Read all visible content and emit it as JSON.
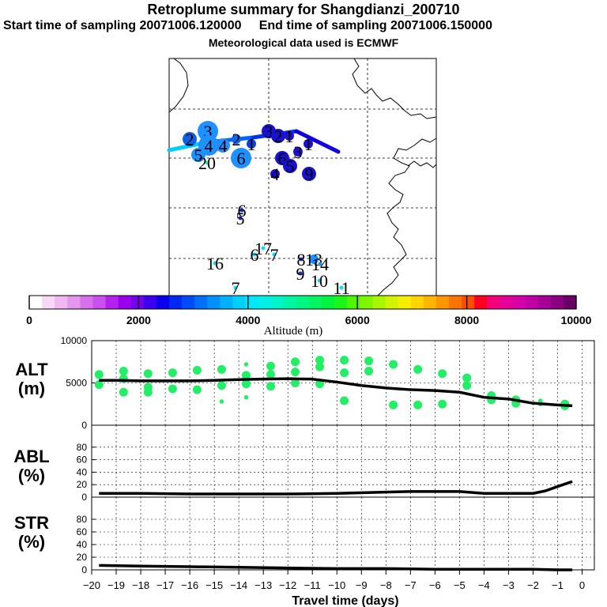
{
  "header": {
    "title": "Retroplume summary for Shangdianzi_200710",
    "subtitle": "Start time of sampling 20071006.120000     End time of sampling 20071006.150000",
    "met_note": "Meteorological data used is ECMWF"
  },
  "colorbar": {
    "label": "Altitude (m)",
    "ticks": [
      "0",
      "2000",
      "4000",
      "6000",
      "8000",
      "10000"
    ],
    "colors": [
      "#ffffff",
      "#f7d9f7",
      "#efb9ef",
      "#e596ee",
      "#d870ee",
      "#c94fee",
      "#b321ee",
      "#9a00ee",
      "#7400ee",
      "#3c00ee",
      "#0b00ee",
      "#0028f5",
      "#004cf8",
      "#0070fb",
      "#0092fc",
      "#00b2fd",
      "#00d0fe",
      "#00e6fa",
      "#00f0e8",
      "#00f3c9",
      "#00f5a6",
      "#00f683",
      "#00f55f",
      "#00f43c",
      "#1df519",
      "#4ef600",
      "#7ef600",
      "#aaf500",
      "#d3f400",
      "#f4ee00",
      "#ffd500",
      "#ffb600",
      "#ff9600",
      "#ff7400",
      "#ff4e00",
      "#ff0022",
      "#f5007a",
      "#e6009a",
      "#d600a8",
      "#c000a6",
      "#a60096",
      "#8a0081",
      "#6a0064"
    ]
  },
  "map": {
    "plume_path_colors": [
      "#00ccff",
      "#0066ff",
      "#0033ee",
      "#1100dd"
    ],
    "markers": [
      {
        "label": "3",
        "color": "#1e90ff",
        "size": "large"
      },
      {
        "label": "2",
        "color": "#0f60e0",
        "size": "medium"
      },
      {
        "label": "4",
        "color": "#1e90ff",
        "size": "large"
      },
      {
        "label": "4",
        "color": "#1e90ff",
        "size": "medium"
      },
      {
        "label": "2",
        "color": "#1166ee",
        "size": "small"
      },
      {
        "label": "1",
        "color": "#0b3fe0",
        "size": "small"
      },
      {
        "label": "5",
        "color": "#1e90ff",
        "size": "medium"
      },
      {
        "label": "20",
        "color": "#00ffcc",
        "size": "tiny"
      },
      {
        "label": "6",
        "color": "#1e90ff",
        "size": "large"
      },
      {
        "label": "3",
        "color": "#1a10d0",
        "size": "medium"
      },
      {
        "label": "2",
        "color": "#1a10d0",
        "size": "medium"
      },
      {
        "label": "1",
        "color": "#2010d0",
        "size": "small"
      },
      {
        "label": "3",
        "color": "#2010d0",
        "size": "small"
      },
      {
        "label": "1",
        "color": "#2010d0",
        "size": "small"
      },
      {
        "label": "6",
        "color": "#1a10d0",
        "size": "medium"
      },
      {
        "label": "5",
        "color": "#1a10d0",
        "size": "medium"
      },
      {
        "label": "9",
        "color": "#1a10d0",
        "size": "medium"
      },
      {
        "label": "4",
        "color": "#2010d0",
        "size": "small"
      },
      {
        "label": "6",
        "color": "#1a30d0",
        "size": "tiny"
      },
      {
        "label": "5",
        "color": "#1a30d0",
        "size": "tiny"
      },
      {
        "label": "17",
        "color": "#00e0ff",
        "size": "tiny"
      },
      {
        "label": "6",
        "color": "#00e0ff",
        "size": "tiny"
      },
      {
        "label": "7",
        "color": "#00e0ff",
        "size": "tiny"
      },
      {
        "label": "16",
        "color": "#00e0ff",
        "size": "tiny"
      },
      {
        "label": "8",
        "color": "#1a30d0",
        "size": "tiny"
      },
      {
        "label": "13",
        "color": "#1e90ff",
        "size": "small"
      },
      {
        "label": "14",
        "color": "#1e90ff",
        "size": "tiny"
      },
      {
        "label": "9",
        "color": "#1a30d0",
        "size": "tiny"
      },
      {
        "label": "10",
        "color": "#00e0ff",
        "size": "tiny"
      },
      {
        "label": "11",
        "color": "#00e0ff",
        "size": "tiny"
      },
      {
        "label": "7",
        "color": "#00e0ff",
        "size": "tiny"
      }
    ]
  },
  "panels": {
    "alt": {
      "label": "ALT\n(m)",
      "label_line1": "ALT",
      "label_line2": "(m)"
    },
    "abl": {
      "label_line1": "ABL",
      "label_line2": "(%)"
    },
    "str": {
      "label_line1": "STR",
      "label_line2": "(%)"
    }
  },
  "chart_data": [
    {
      "type": "line",
      "name": "altitude",
      "ylabel": "ALT (m)",
      "ylim": [
        0,
        10000
      ],
      "yticks": [
        "10000",
        "5000",
        "0"
      ],
      "x": [
        -19.7,
        -19,
        -18,
        -17,
        -16,
        -15,
        -14,
        -13,
        -12,
        -11,
        -10,
        -9,
        -8,
        -7,
        -6,
        -5,
        -4,
        -3,
        -2,
        -1,
        -0.4
      ],
      "values": [
        5300,
        5300,
        5250,
        5250,
        5250,
        5300,
        5400,
        5450,
        5500,
        5450,
        5100,
        4700,
        4400,
        4200,
        4100,
        3900,
        3300,
        3100,
        2600,
        2400,
        2300
      ],
      "scatter": {
        "x": [
          -19.7,
          -19.7,
          -18.7,
          -18.7,
          -18.7,
          -17.7,
          -17.7,
          -17.7,
          -16.7,
          -16.7,
          -15.7,
          -15.7,
          -14.7,
          -14.7,
          -14.7,
          -13.7,
          -13.7,
          -13.7,
          -13.7,
          -12.7,
          -12.7,
          -12.7,
          -11.7,
          -11.7,
          -11.7,
          -10.7,
          -10.7,
          -10.7,
          -9.7,
          -9.7,
          -9.7,
          -8.7,
          -8.7,
          -7.7,
          -7.7,
          -6.7,
          -6.7,
          -5.7,
          -5.7,
          -4.7,
          -4.7,
          -3.7,
          -3.7,
          -2.7,
          -2.7,
          -1.7,
          -1.7,
          -0.7,
          -0.7
        ],
        "y": [
          6000,
          4800,
          6400,
          5500,
          3900,
          6100,
          4500,
          3900,
          6200,
          4300,
          6500,
          4200,
          6600,
          4700,
          2800,
          7200,
          5900,
          4900,
          3300,
          7000,
          6000,
          4600,
          7500,
          6300,
          5000,
          7700,
          6900,
          4900,
          7700,
          6200,
          2900,
          7600,
          6400,
          2400,
          7200,
          6600,
          2400,
          6100,
          2500,
          5600,
          4700,
          3000,
          3500,
          2600,
          3000,
          2900,
          2500,
          2500,
          2300
        ],
        "sizes": [
          1,
          1,
          1,
          1,
          1,
          1,
          1,
          1,
          1,
          1,
          1,
          1,
          1,
          1,
          0.5,
          0.5,
          1,
          1,
          0.5,
          1,
          1,
          1,
          1,
          1,
          1,
          1,
          1,
          1,
          1,
          1,
          1,
          1,
          1,
          1,
          1,
          1,
          1,
          1,
          1,
          1,
          1,
          1,
          1,
          1,
          1,
          0.5,
          0.5,
          1,
          1
        ]
      }
    },
    {
      "type": "line",
      "name": "abl",
      "ylabel": "ABL (%)",
      "ylim": [
        0,
        100
      ],
      "yticks": [
        "80",
        "60",
        "40",
        "20",
        "0"
      ],
      "x": [
        -19.7,
        -18,
        -16,
        -14,
        -12,
        -10,
        -8,
        -7,
        -6,
        -5,
        -4,
        -3,
        -2,
        -1.5,
        -1,
        -0.4
      ],
      "values": [
        6,
        6,
        5,
        5,
        5,
        6,
        8,
        9,
        9,
        9,
        6,
        6,
        6,
        10,
        17,
        25
      ]
    },
    {
      "type": "line",
      "name": "str",
      "ylabel": "STR (%)",
      "ylim": [
        0,
        100
      ],
      "yticks": [
        "80",
        "60",
        "40",
        "20",
        "0"
      ],
      "x": [
        -19.7,
        -18,
        -16,
        -14,
        -12,
        -10,
        -8,
        -6,
        -4,
        -2,
        -1,
        -0.4
      ],
      "values": [
        7,
        6,
        5,
        4,
        3,
        2,
        2,
        1,
        1,
        1,
        0,
        0
      ]
    }
  ],
  "xaxis": {
    "title": "Travel time (days)",
    "ticks": [
      "−20",
      "−19",
      "−18",
      "−17",
      "−16",
      "−15",
      "−14",
      "−13",
      "−12",
      "−11",
      "−10",
      "−9",
      "−8",
      "−7",
      "−6",
      "−5",
      "−4",
      "−3",
      "−2",
      "−1",
      "0"
    ]
  }
}
